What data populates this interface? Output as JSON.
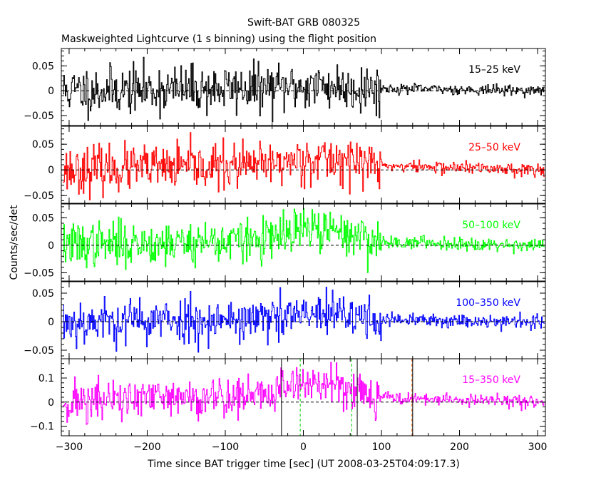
{
  "chart_data": {
    "type": "line",
    "title": "Swift-BAT GRB 080325",
    "subtitle": "Maskweighted Lightcurve (1 s binning) using the flight position",
    "xlabel": "Time since BAT trigger time [sec] (UT 2008-03-25T04:09:17.3)",
    "ylabel": "Counts/sec/det",
    "xlim": [
      -310,
      310
    ],
    "xticks": [
      -300,
      -200,
      -100,
      0,
      100,
      200,
      300
    ],
    "xtick_labels": [
      "−300",
      "−200",
      "−100",
      "0",
      "100",
      "200",
      "300"
    ],
    "zero_line": "dashed",
    "binning_sec": 1,
    "panels": [
      {
        "name": "15–25 keV",
        "color": "#000000",
        "ylim": [
          -0.07,
          0.085
        ],
        "yticks": [
          -0.05,
          0,
          0.05
        ],
        "ytick_labels": [
          "−0.05",
          "0",
          "0.05"
        ],
        "pre_burst_noise": 0.024,
        "post_burst_noise": 0.005,
        "burst_profile": [
          [
            -310,
            0
          ],
          [
            -40,
            0.005
          ],
          [
            20,
            0.01
          ],
          [
            80,
            0.005
          ],
          [
            310,
            0
          ]
        ],
        "x_range": [
          -308,
          308
        ],
        "seed": 11
      },
      {
        "name": "25–50 keV",
        "color": "#ff0000",
        "ylim": [
          -0.065,
          0.085
        ],
        "yticks": [
          -0.05,
          0,
          0.05
        ],
        "ytick_labels": [
          "−0.05",
          "0",
          "0.05"
        ],
        "pre_burst_noise": 0.022,
        "post_burst_noise": 0.006,
        "burst_profile": [
          [
            -310,
            0
          ],
          [
            -50,
            0.008
          ],
          [
            0,
            0.022
          ],
          [
            60,
            0.018
          ],
          [
            100,
            0.008
          ],
          [
            310,
            0
          ]
        ],
        "x_range": [
          -308,
          308
        ],
        "seed": 23
      },
      {
        "name": "50–100 keV",
        "color": "#00ff00",
        "ylim": [
          -0.065,
          0.075
        ],
        "yticks": [
          -0.05,
          0,
          0.05
        ],
        "ytick_labels": [
          "−0.05",
          "0",
          "0.05"
        ],
        "pre_burst_noise": 0.02,
        "post_burst_noise": 0.006,
        "burst_profile": [
          [
            -310,
            0
          ],
          [
            -40,
            0.01
          ],
          [
            0,
            0.03
          ],
          [
            60,
            0.02
          ],
          [
            100,
            0.006
          ],
          [
            310,
            0
          ]
        ],
        "x_range": [
          -308,
          308
        ],
        "seed": 37
      },
      {
        "name": "100–350 keV",
        "color": "#0000ff",
        "ylim": [
          -0.065,
          0.07
        ],
        "yticks": [
          -0.05,
          0,
          0.05
        ],
        "ytick_labels": [
          "−0.05",
          "0",
          "0.05"
        ],
        "pre_burst_noise": 0.02,
        "post_burst_noise": 0.006,
        "burst_profile": [
          [
            -310,
            0
          ],
          [
            -30,
            0.005
          ],
          [
            0,
            0.012
          ],
          [
            60,
            0.01
          ],
          [
            100,
            0.003
          ],
          [
            310,
            0
          ]
        ],
        "x_range": [
          -308,
          308
        ],
        "seed": 53
      },
      {
        "name": "15–350 keV",
        "color": "#ff00ff",
        "ylim": [
          -0.14,
          0.18
        ],
        "yticks": [
          -0.1,
          0,
          0.1
        ],
        "ytick_labels": [
          "−0.1",
          "0",
          "0.1"
        ],
        "pre_burst_noise": 0.045,
        "post_burst_noise": 0.012,
        "burst_profile": [
          [
            -310,
            0
          ],
          [
            -40,
            0.03
          ],
          [
            -25,
            0.07
          ],
          [
            0,
            0.08
          ],
          [
            50,
            0.07
          ],
          [
            80,
            0.04
          ],
          [
            120,
            0.015
          ],
          [
            310,
            0
          ]
        ],
        "x_range": [
          -308,
          308
        ],
        "seed": 71,
        "markers": [
          {
            "x": -28,
            "color": "#000000",
            "style": "solid"
          },
          {
            "x": 69,
            "color": "#000000",
            "style": "solid"
          },
          {
            "x": -4,
            "color": "#00cc00",
            "style": "dashed"
          },
          {
            "x": 62,
            "color": "#00cc00",
            "style": "dashed"
          },
          {
            "x": 139,
            "color": "#ff6600",
            "style": "dashed"
          },
          {
            "x": 140,
            "color": "#000000",
            "style": "solid"
          }
        ]
      }
    ]
  }
}
